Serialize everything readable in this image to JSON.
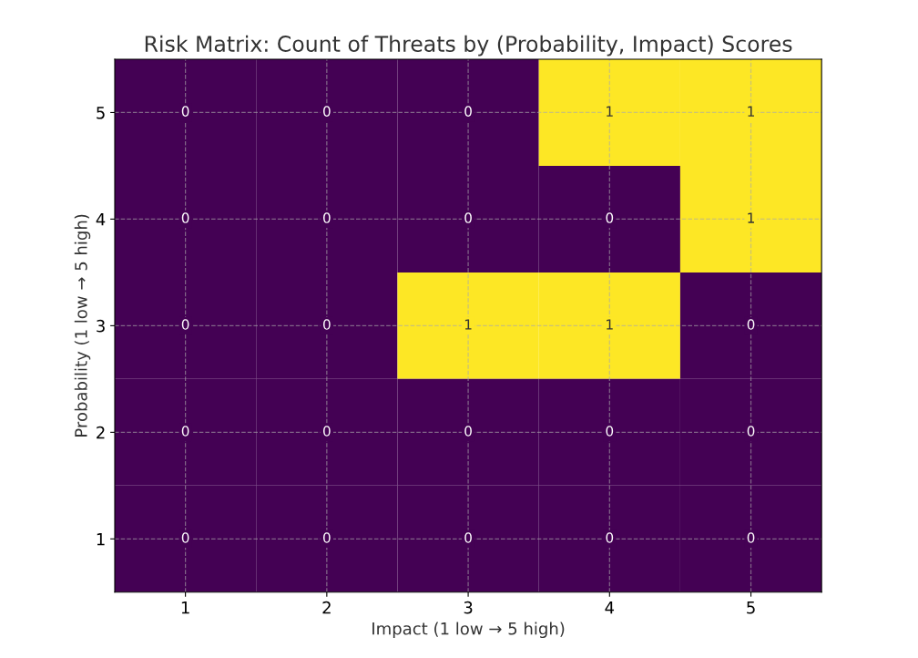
{
  "chart_data": {
    "type": "heatmap",
    "title": "Risk Matrix: Count of Threats by (Probability, Impact) Scores",
    "xlabel": "Impact (1 low → 5 high)",
    "ylabel": "Probability (1 low → 5 high)",
    "categories": [
      "1",
      "2",
      "3",
      "4",
      "5"
    ],
    "y_categories": [
      "5",
      "4",
      "3",
      "2",
      "1"
    ],
    "cells": [
      [
        0,
        0,
        0,
        1,
        1
      ],
      [
        0,
        0,
        0,
        0,
        1
      ],
      [
        0,
        0,
        1,
        1,
        0
      ],
      [
        0,
        0,
        0,
        0,
        0
      ],
      [
        0,
        0,
        0,
        0,
        0
      ]
    ],
    "data_labels": true,
    "grid": true,
    "line_style": "dashed"
  }
}
